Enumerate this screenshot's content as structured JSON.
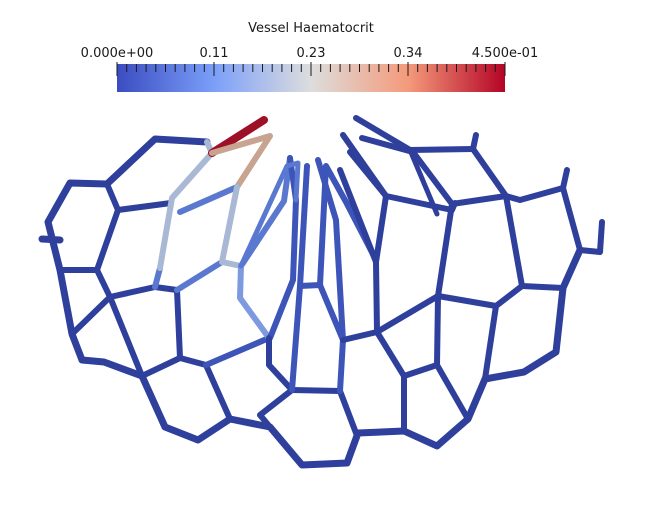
{
  "colorbar": {
    "title": "Vessel Haematocrit",
    "tick_labels": [
      "0.000e+00",
      "0.11",
      "0.23",
      "0.34",
      "4.500e-01"
    ],
    "range": [
      0.0,
      0.45
    ],
    "colormap": "cool-to-warm",
    "colors": [
      "#3b4cc0",
      "#dddddd",
      "#b40426"
    ]
  },
  "colors": {
    "background": "#ffffff",
    "vessel_low": "#3b4cc0",
    "vessel_mid": "#dddddd",
    "vessel_high": "#b40426"
  }
}
